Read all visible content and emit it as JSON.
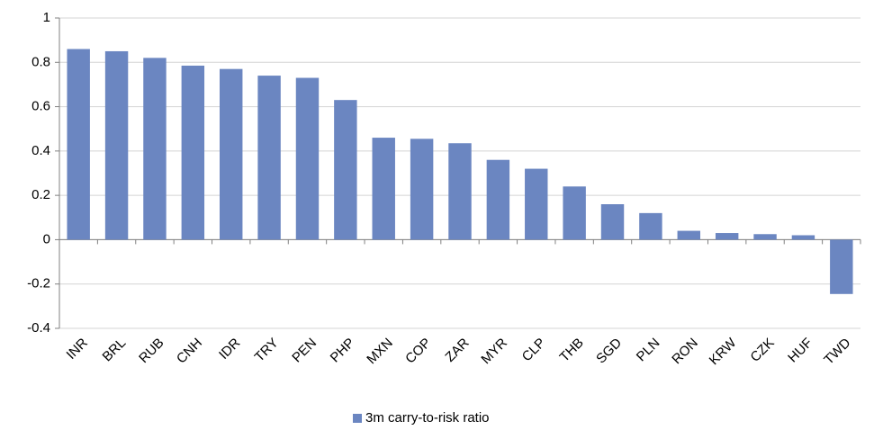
{
  "chart_data": {
    "type": "bar",
    "categories": [
      "INR",
      "BRL",
      "RUB",
      "CNH",
      "IDR",
      "TRY",
      "PEN",
      "PHP",
      "MXN",
      "COP",
      "ZAR",
      "MYR",
      "CLP",
      "THB",
      "SGD",
      "PLN",
      "RON",
      "KRW",
      "CZK",
      "HUF",
      "TWD"
    ],
    "series": [
      {
        "name": "3m carry-to-risk ratio",
        "color": "#6b86c1",
        "values": [
          0.86,
          0.85,
          0.82,
          0.785,
          0.77,
          0.74,
          0.73,
          0.63,
          0.46,
          0.455,
          0.435,
          0.36,
          0.32,
          0.24,
          0.16,
          0.12,
          0.04,
          0.03,
          0.025,
          0.02,
          -0.245
        ]
      }
    ],
    "ylim": [
      -0.4,
      1
    ],
    "yticks": [
      -0.4,
      -0.2,
      0,
      0.2,
      0.4,
      0.6,
      0.8,
      1
    ],
    "grid": true,
    "legend": "bottom"
  }
}
